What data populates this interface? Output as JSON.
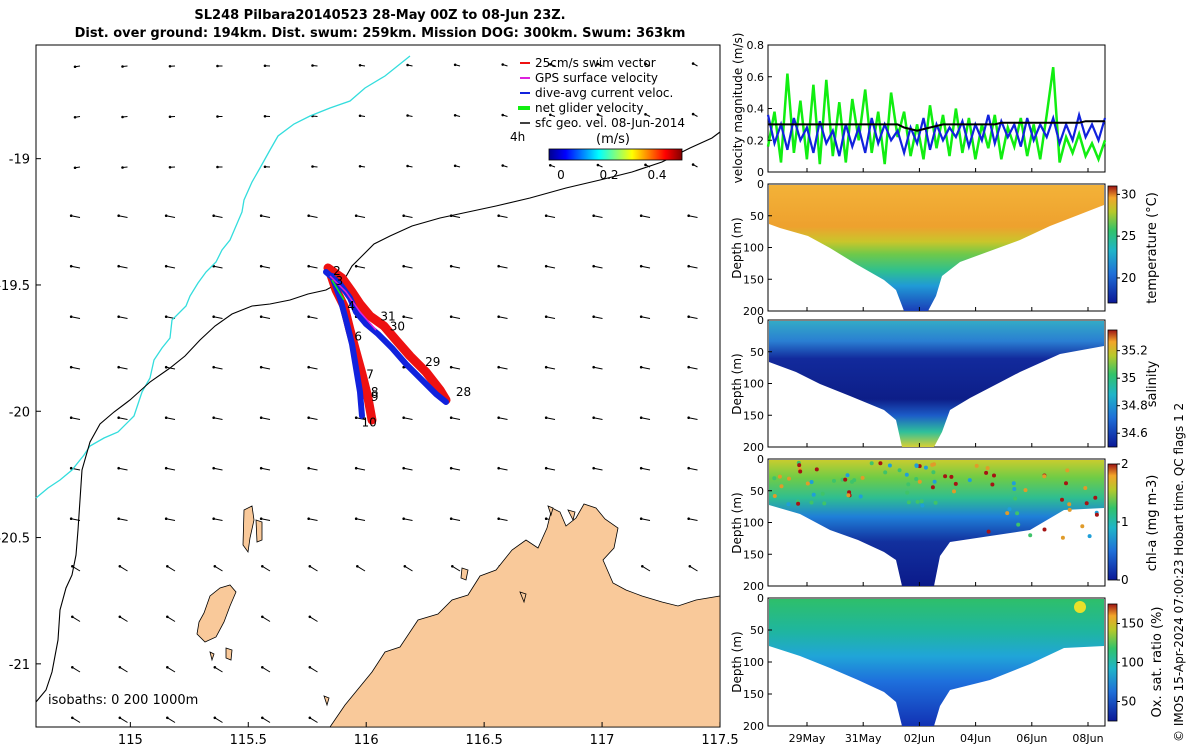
{
  "header": {
    "title_line1": "SL248 Pilbara20140523 28-May 00Z to 08-Jun 23Z.",
    "title_line2": "Dist. over ground: 194km. Dist. swum: 259km. Mission DOG: 300km. Swum: 363km"
  },
  "copyright": "© IMOS 15-Apr-2024 07:00:23 Hobart time. QC flags 1  2",
  "colors": {
    "land": "#f9c99a",
    "coast_line": "#000000",
    "isobath_200": "#000000",
    "isobath_1000": "#33dddd",
    "swim": "#ee1111",
    "gps": "#dd22dd",
    "dive_avg": "#1122dd",
    "net": "#11ee11",
    "sfc_geo": "#000000"
  },
  "chart_data": [
    {
      "type": "map",
      "xlim": [
        114.6,
        117.5
      ],
      "ylim": [
        -21.25,
        -18.55
      ],
      "x_ticks": [
        "115",
        "115.5",
        "116",
        "116.5",
        "117",
        "117.5"
      ],
      "y_ticks": [
        "-19",
        "-19.5",
        "-20",
        "-20.5",
        "-21"
      ],
      "legend": {
        "placement": "top-right",
        "items": [
          {
            "label": "25cm/s swim vector",
            "color": "#ee1111"
          },
          {
            "label": "GPS surface velocity",
            "color": "#dd22dd"
          },
          {
            "label": "dive-avg current veloc.",
            "color": "#1122dd"
          },
          {
            "label": "net glider velocity",
            "color": "#11ee11"
          },
          {
            "label": "sfc geo. vel. 08-Jun-2014",
            "color": "#000000"
          }
        ],
        "note_4h": "4h",
        "colorbar_title": "(m/s)",
        "colorbar_ticks": [
          "0",
          "0.2",
          "0.4"
        ]
      },
      "isobaths_label": "isobaths: 0   200  1000m",
      "track_day_labels": [
        {
          "text": "2",
          "lon": 115.86,
          "lat": -19.46
        },
        {
          "text": "3",
          "lon": 115.87,
          "lat": -19.5
        },
        {
          "text": "4",
          "lon": 115.92,
          "lat": -19.6
        },
        {
          "text": "31",
          "lon": 116.06,
          "lat": -19.64
        },
        {
          "text": "30",
          "lon": 116.1,
          "lat": -19.68
        },
        {
          "text": "6",
          "lon": 115.95,
          "lat": -19.72
        },
        {
          "text": "29",
          "lon": 116.25,
          "lat": -19.82
        },
        {
          "text": "7",
          "lon": 116.0,
          "lat": -19.87
        },
        {
          "text": "8",
          "lon": 116.02,
          "lat": -19.94
        },
        {
          "text": "28",
          "lon": 116.38,
          "lat": -19.94
        },
        {
          "text": "9",
          "lon": 116.02,
          "lat": -19.96
        },
        {
          "text": "10",
          "lon": 115.98,
          "lat": -20.06
        }
      ]
    },
    {
      "type": "line",
      "ylabel": "velocity magnitude (m/s)",
      "ylim": [
        0,
        0.8
      ],
      "y_ticks": [
        "0",
        "0.2",
        "0.4",
        "0.6",
        "0.8"
      ],
      "series": [
        {
          "color": "#11ee11",
          "values": [
            0.16,
            0.38,
            0.06,
            0.62,
            0.12,
            0.45,
            0.08,
            0.55,
            0.05,
            0.58,
            0.1,
            0.44,
            0.06,
            0.46,
            0.2,
            0.52,
            0.12,
            0.38,
            0.05,
            0.5,
            0.22,
            0.38,
            0.1,
            0.3,
            0.08,
            0.42,
            0.15,
            0.36,
            0.1,
            0.4,
            0.12,
            0.34,
            0.08,
            0.3,
            0.15,
            0.36,
            0.08,
            0.28,
            0.16,
            0.34,
            0.1,
            0.3,
            0.08,
            0.36,
            0.66,
            0.06,
            0.22,
            0.12,
            0.24,
            0.1,
            0.18,
            0.08,
            0.2
          ]
        },
        {
          "color": "#1122dd",
          "values": [
            0.36,
            0.18,
            0.3,
            0.14,
            0.34,
            0.2,
            0.28,
            0.12,
            0.32,
            0.18,
            0.26,
            0.1,
            0.3,
            0.16,
            0.28,
            0.12,
            0.34,
            0.18,
            0.3,
            0.2,
            0.26,
            0.12,
            0.28,
            0.18,
            0.34,
            0.14,
            0.3,
            0.2,
            0.28,
            0.22,
            0.32,
            0.16,
            0.3,
            0.2,
            0.36,
            0.18,
            0.32,
            0.22,
            0.3,
            0.16,
            0.34,
            0.2,
            0.3,
            0.22,
            0.34,
            0.18,
            0.3,
            0.2,
            0.36,
            0.22,
            0.3,
            0.2,
            0.34
          ]
        },
        {
          "color": "#000000",
          "values": [
            0.3,
            0.3,
            0.3,
            0.3,
            0.3,
            0.3,
            0.3,
            0.3,
            0.3,
            0.3,
            0.3,
            0.3,
            0.3,
            0.3,
            0.3,
            0.3,
            0.3,
            0.3,
            0.3,
            0.3,
            0.3,
            0.28,
            0.27,
            0.26,
            0.27,
            0.28,
            0.29,
            0.3,
            0.3,
            0.3,
            0.3,
            0.3,
            0.3,
            0.3,
            0.3,
            0.3,
            0.31,
            0.31,
            0.31,
            0.31,
            0.31,
            0.31,
            0.31,
            0.31,
            0.31,
            0.31,
            0.31,
            0.31,
            0.31,
            0.32,
            0.32,
            0.32,
            0.32
          ]
        }
      ]
    },
    {
      "type": "heatmap",
      "variable": "temperature",
      "ylabel": "Depth (m)",
      "ylim": [
        0,
        200
      ],
      "y_ticks": [
        "0",
        "50",
        "100",
        "150",
        "200"
      ],
      "colorbar_label": "temperature (°C)",
      "colorbar_ticks": [
        "20",
        "25",
        "30"
      ],
      "colorbar_range": [
        17,
        31
      ]
    },
    {
      "type": "heatmap",
      "variable": "salinity",
      "ylabel": "Depth (m)",
      "ylim": [
        0,
        200
      ],
      "y_ticks": [
        "0",
        "50",
        "100",
        "150",
        "200"
      ],
      "colorbar_label": "salinity",
      "colorbar_ticks": [
        "34.6",
        "34.8",
        "35",
        "35.2"
      ],
      "colorbar_range": [
        34.5,
        35.35
      ]
    },
    {
      "type": "heatmap",
      "variable": "chl-a",
      "ylabel": "Depth (m)",
      "ylim": [
        0,
        200
      ],
      "y_ticks": [
        "0",
        "50",
        "100",
        "150",
        "200"
      ],
      "colorbar_label": "chl-a (mg m-3)",
      "colorbar_ticks": [
        "0",
        "1",
        "2"
      ],
      "colorbar_range": [
        0,
        2
      ]
    },
    {
      "type": "heatmap",
      "variable": "oxygen",
      "ylabel": "Depth (m)",
      "ylim": [
        0,
        200
      ],
      "y_ticks": [
        "0",
        "50",
        "100",
        "150",
        "200"
      ],
      "x_ticks": [
        "29May",
        "31May",
        "02Jun",
        "04Jun",
        "06Jun",
        "08Jun"
      ],
      "colorbar_label": "Ox. sat. ratio (%)",
      "colorbar_ticks": [
        "50",
        "100",
        "150"
      ],
      "colorbar_range": [
        25,
        175
      ]
    }
  ]
}
